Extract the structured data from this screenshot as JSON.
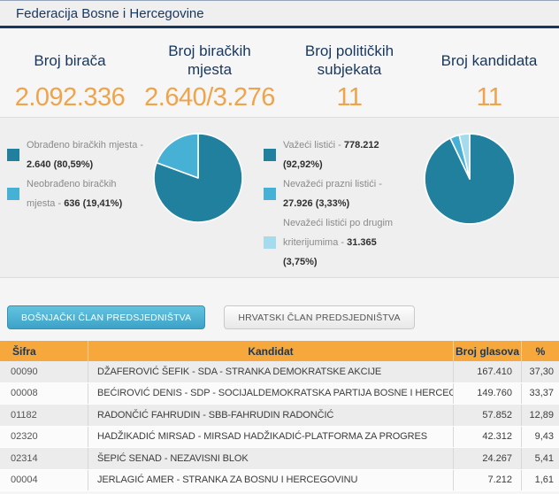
{
  "header": {
    "title": "Federacija Bosne i Hercegovine"
  },
  "stats": [
    {
      "label": "Broj birača",
      "value": "2.092.336"
    },
    {
      "label": "Broj biračkih mjesta",
      "value": "2.640/3.276"
    },
    {
      "label": "Broj političkih subjekata",
      "value": "11"
    },
    {
      "label": "Broj kandidata",
      "value": "11"
    }
  ],
  "legends": {
    "polling": [
      {
        "label": "Obrađeno biračkih mjesta - ",
        "value": "2.640 (80,59%)",
        "color": "#20809e"
      },
      {
        "label": "Neobrađeno biračkih mjesta - ",
        "value": "636 (19,41%)",
        "color": "#47b0d5"
      }
    ],
    "ballots": [
      {
        "label": "Važeći listići - ",
        "value": "778.212 (92,92%)",
        "color": "#20809e"
      },
      {
        "label": "Nevažeći prazni listići - ",
        "value": "27.926 (3,33%)",
        "color": "#47b0d5"
      },
      {
        "label": "Nevažeći listići po drugim kriterijumima - ",
        "value": "31.365 (3,75%)",
        "color": "#a5dbec"
      }
    ]
  },
  "chart_data": [
    {
      "type": "pie",
      "categories": [
        "Obrađeno biračkih mjesta",
        "Neobrađeno biračkih mjesta"
      ],
      "values": [
        2640,
        636
      ],
      "percentages": [
        80.59,
        19.41
      ],
      "colors": [
        "#20809e",
        "#47b0d5"
      ],
      "legend_position": "left"
    },
    {
      "type": "pie",
      "categories": [
        "Važeći listići",
        "Nevažeći prazni listići",
        "Nevažeći listići po drugim kriterijumima"
      ],
      "values": [
        778212,
        27926,
        31365
      ],
      "percentages": [
        92.92,
        3.33,
        3.75
      ],
      "colors": [
        "#20809e",
        "#47b0d5",
        "#a5dbec"
      ],
      "legend_position": "left"
    }
  ],
  "tabs": [
    {
      "label": "BOŠNJAČKI ČLAN PREDSJEDNIŠTVA",
      "active": true
    },
    {
      "label": "HRVATSKI ČLAN PREDSJEDNIŠTVA",
      "active": false
    }
  ],
  "table": {
    "headers": [
      "Šifra",
      "Kandidat",
      "Broj glasova",
      "%"
    ],
    "rows": [
      {
        "sifra": "00090",
        "kandidat": "DŽAFEROVIĆ ŠEFIK - SDA - STRANKA DEMOKRATSKE AKCIJE",
        "glasovi": "167.410",
        "pct": "37,30"
      },
      {
        "sifra": "00008",
        "kandidat": "BEĆIROVIĆ DENIS - SDP - SOCIJALDEMOKRATSKA PARTIJA BOSNE I HERCEGOVINE",
        "glasovi": "149.760",
        "pct": "33,37"
      },
      {
        "sifra": "01182",
        "kandidat": "RADONČIĆ FAHRUDIN - SBB-FAHRUDIN RADONČIĆ",
        "glasovi": "57.852",
        "pct": "12,89"
      },
      {
        "sifra": "02320",
        "kandidat": "HADŽIKADIĆ MIRSAD - MIRSAD HADŽIKADIĆ-PLATFORMA ZA PROGRES",
        "glasovi": "42.312",
        "pct": "9,43"
      },
      {
        "sifra": "02314",
        "kandidat": "ŠEPIĆ SENAD - NEZAVISNI BLOK",
        "glasovi": "24.267",
        "pct": "5,41"
      },
      {
        "sifra": "00004",
        "kandidat": "JERLAGIĆ AMER - STRANKA ZA BOSNU I HERCEGOVINU",
        "glasovi": "7.212",
        "pct": "1,61"
      }
    ]
  },
  "colors": {
    "navy": "#17375e",
    "accent_orange": "#efa44c",
    "table_header_orange": "#f6a83d",
    "pie_dark_teal": "#20809e",
    "pie_medium_blue": "#47b0d5",
    "pie_light_blue": "#a5dbec",
    "active_tab_blue": "#3da2c6"
  }
}
